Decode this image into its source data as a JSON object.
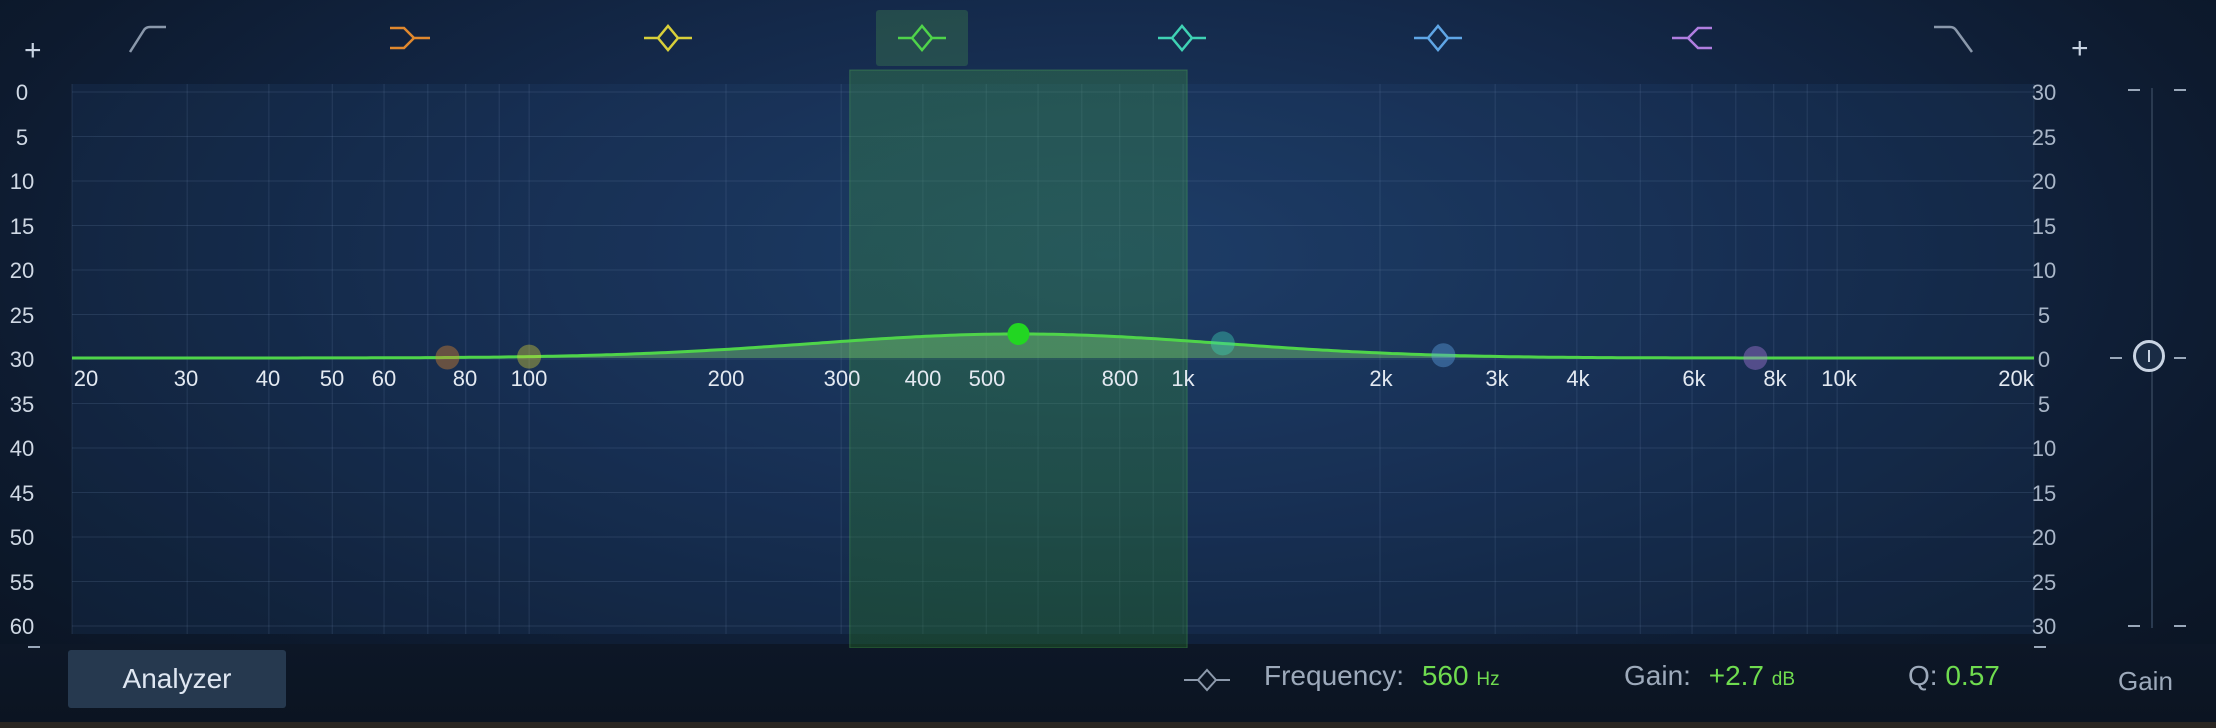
{
  "bands": [
    {
      "name": "low-cut",
      "color": "#8a98ab",
      "selected": false
    },
    {
      "name": "low-shelf",
      "color": "#e0882e",
      "selected": false
    },
    {
      "name": "bell-1",
      "color": "#d8cf3a",
      "selected": false
    },
    {
      "name": "bell-2",
      "color": "#4fd44a",
      "selected": true
    },
    {
      "name": "bell-3",
      "color": "#3fd2b4",
      "selected": false
    },
    {
      "name": "bell-4",
      "color": "#5fa6e6",
      "selected": false
    },
    {
      "name": "high-shelf",
      "color": "#b07ee0",
      "selected": false
    },
    {
      "name": "high-cut",
      "color": "#8a98ab",
      "selected": false
    }
  ],
  "left_plus": "+",
  "right_plus": "+",
  "left_scale": [
    "0",
    "5",
    "10",
    "15",
    "20",
    "25",
    "30",
    "35",
    "40",
    "45",
    "50",
    "55",
    "60"
  ],
  "right_scale": [
    "30",
    "25",
    "20",
    "15",
    "10",
    "5",
    "0",
    "5",
    "10",
    "15",
    "20",
    "25",
    "30"
  ],
  "freq_labels": [
    "20",
    "30",
    "40",
    "50",
    "60",
    "80",
    "100",
    "200",
    "300",
    "400",
    "500",
    "800",
    "1k",
    "2k",
    "3k",
    "4k",
    "6k",
    "8k",
    "10k",
    "20k"
  ],
  "curve": {
    "center_hz": 560,
    "gain_db": 2.7,
    "q": 0.57,
    "color": "#4fd44a"
  },
  "nodes": [
    {
      "hz": 75,
      "color": "#e0882e"
    },
    {
      "hz": 100,
      "color": "#d8cf3a"
    },
    {
      "hz": 560,
      "color": "#22d622"
    },
    {
      "hz": 1150,
      "color": "#3fd2b4"
    },
    {
      "hz": 2500,
      "color": "#5fa6e6"
    },
    {
      "hz": 7500,
      "color": "#b07ee0"
    }
  ],
  "analyzer": {
    "label": "Analyzer"
  },
  "params": {
    "frequency_label": "Frequency:",
    "frequency_value": "560",
    "frequency_unit": "Hz",
    "gain_label": "Gain:",
    "gain_value": "+2.7",
    "gain_unit": "dB",
    "q_label": "Q:",
    "q_value": "0.57"
  },
  "master_gain": {
    "label": "Gain",
    "value_db": 0
  }
}
